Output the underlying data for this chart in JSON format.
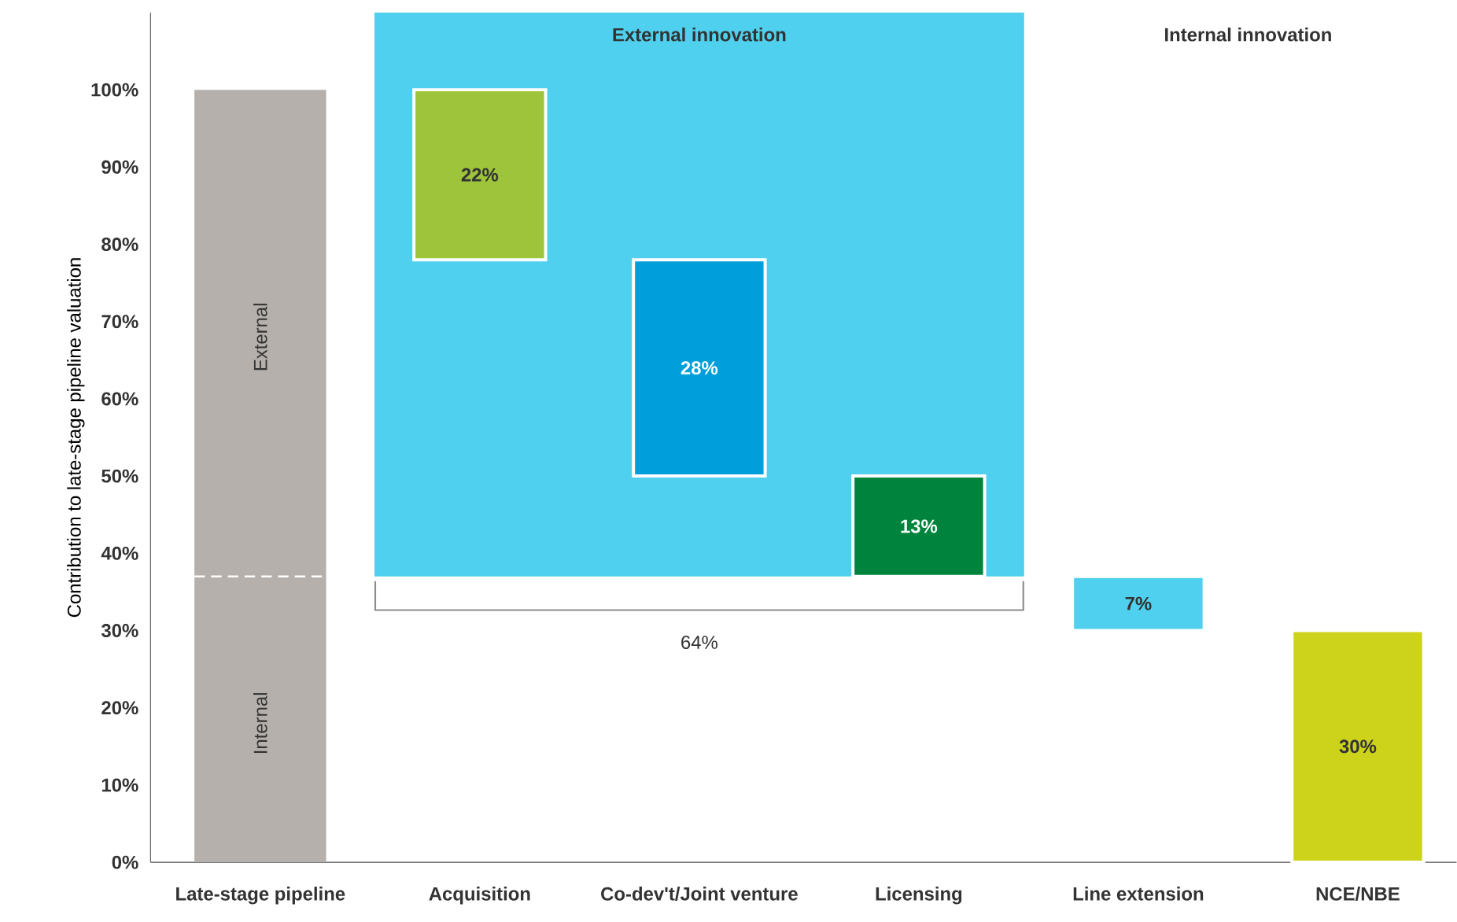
{
  "chart_data": {
    "type": "bar",
    "categories": [
      "Late-stage pipeline",
      "Acquisition",
      "Co-dev't/Joint venture",
      "Licensing",
      "Line extension",
      "NCE/NBE"
    ],
    "values": [
      100,
      22,
      28,
      13,
      7,
      30
    ],
    "base": [
      0,
      78,
      50,
      37,
      30,
      0
    ],
    "colors": [
      "#b5b0ab",
      "#9dc43a",
      "#009fdb",
      "#00843d",
      "#4fd0ee",
      "#cdd31a"
    ],
    "value_labels": [
      null,
      "22%",
      "28%",
      "13%",
      "7%",
      "30%"
    ],
    "ylabel": "Contribution to late-stage pipeline valuation",
    "ylim": [
      0,
      110
    ],
    "yticks": [
      {
        "value": 0,
        "label": "0%"
      },
      {
        "value": 10,
        "label": "10%"
      },
      {
        "value": 20,
        "label": "20%"
      },
      {
        "value": 30,
        "label": "30%"
      },
      {
        "value": 40,
        "label": "40%"
      },
      {
        "value": 50,
        "label": "50%"
      },
      {
        "value": 60,
        "label": "60%"
      },
      {
        "value": 70,
        "label": "70%"
      },
      {
        "value": 80,
        "label": "80%"
      },
      {
        "value": 90,
        "label": "90%"
      },
      {
        "value": 100,
        "label": "100%"
      }
    ],
    "ref_lines": [
      {
        "axis": "y",
        "value": 37,
        "color": "#ffffff",
        "line_style": "dashed"
      }
    ],
    "annotations": [
      "External innovation",
      "Internal innovation",
      "External",
      "Internal",
      "64%"
    ],
    "grid": false
  }
}
